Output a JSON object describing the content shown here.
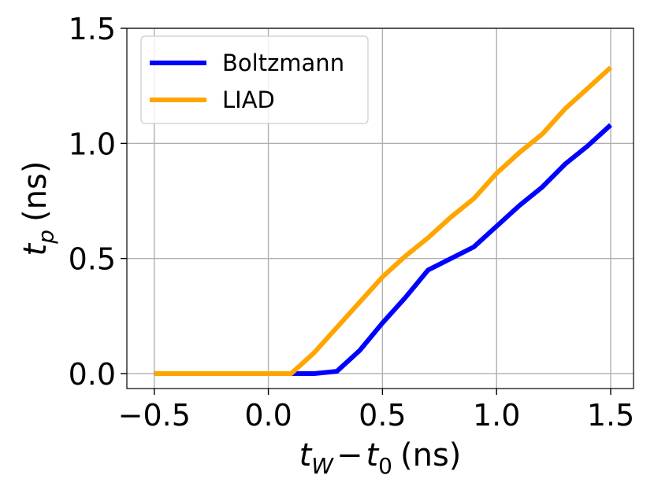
{
  "chart_data": {
    "type": "line",
    "xlabel": {
      "base": "t",
      "sub": "W",
      "op": "−",
      "base2": "t",
      "sub2": "0",
      "unit": "(ns)"
    },
    "ylabel": {
      "base": "t",
      "sub": "p",
      "unit": "(ns)"
    },
    "xlim": [
      -0.62,
      1.6
    ],
    "ylim": [
      -0.065,
      1.5
    ],
    "xticks": [
      -0.5,
      0.0,
      0.5,
      1.0,
      1.5
    ],
    "xtick_labels": [
      "−0.5",
      "0.0",
      "0.5",
      "1.0",
      "1.5"
    ],
    "yticks": [
      0.0,
      0.5,
      1.0,
      1.5
    ],
    "ytick_labels": [
      "0.0",
      "0.5",
      "1.0",
      "1.5"
    ],
    "grid": true,
    "legend_position": "top-left",
    "series": [
      {
        "name": "Boltzmann",
        "color": "#0000ff",
        "x": [
          -0.5,
          -0.4,
          -0.3,
          -0.2,
          -0.1,
          0.0,
          0.1,
          0.2,
          0.3,
          0.4,
          0.5,
          0.6,
          0.7,
          0.8,
          0.9,
          1.0,
          1.1,
          1.2,
          1.3,
          1.4,
          1.5
        ],
        "y": [
          0.0,
          0.0,
          0.0,
          0.0,
          0.0,
          0.0,
          0.0,
          0.0,
          0.01,
          0.1,
          0.22,
          0.33,
          0.45,
          0.5,
          0.55,
          0.64,
          0.73,
          0.81,
          0.91,
          0.99,
          1.08
        ]
      },
      {
        "name": "LIAD",
        "color": "#ffa500",
        "x": [
          -0.5,
          -0.4,
          -0.3,
          -0.2,
          -0.1,
          0.0,
          0.1,
          0.2,
          0.3,
          0.4,
          0.5,
          0.6,
          0.7,
          0.8,
          0.9,
          1.0,
          1.1,
          1.2,
          1.3,
          1.4,
          1.5
        ],
        "y": [
          0.0,
          0.0,
          0.0,
          0.0,
          0.0,
          0.0,
          0.0,
          0.09,
          0.2,
          0.31,
          0.42,
          0.51,
          0.59,
          0.68,
          0.76,
          0.87,
          0.96,
          1.04,
          1.15,
          1.24,
          1.33
        ]
      }
    ]
  }
}
